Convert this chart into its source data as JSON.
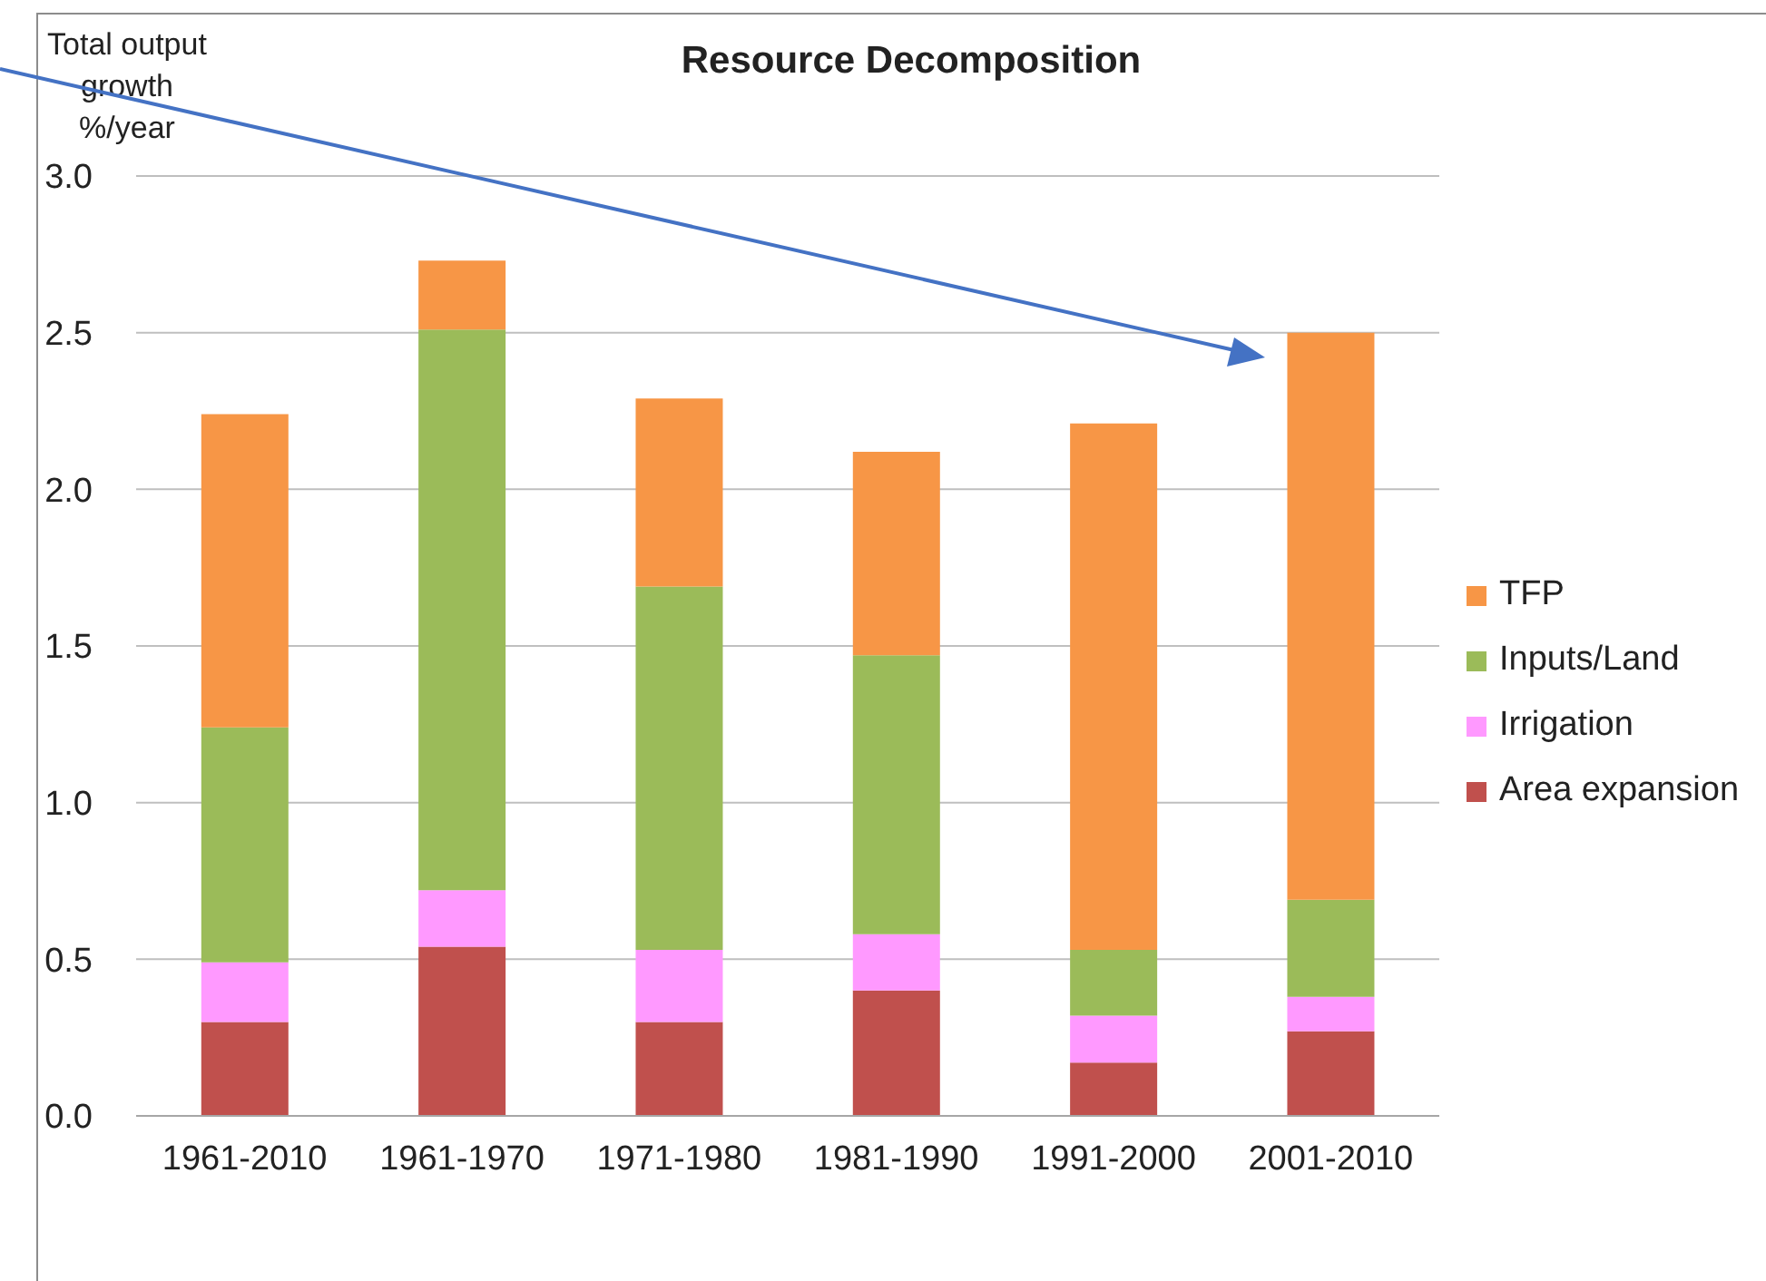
{
  "chart_data": {
    "type": "bar",
    "title": "Resource Decomposition",
    "ylabel": "Total output growth %/year",
    "categories": [
      "1961-2010",
      "1961-1970",
      "1971-1980",
      "1981-1990",
      "1991-2000",
      "2001-2010"
    ],
    "series": [
      {
        "name": "Area expansion",
        "color": "#c0504d",
        "values": [
          0.3,
          0.54,
          0.3,
          0.4,
          0.17,
          0.27
        ]
      },
      {
        "name": "Irrigation",
        "color": "#ff99ff",
        "values": [
          0.19,
          0.18,
          0.23,
          0.18,
          0.15,
          0.11
        ]
      },
      {
        "name": "Inputs/Land",
        "color": "#9bbb59",
        "values": [
          0.75,
          1.79,
          1.16,
          0.89,
          0.21,
          0.31
        ]
      },
      {
        "name": "TFP",
        "color": "#f79646",
        "values": [
          1.0,
          0.22,
          0.6,
          0.65,
          1.68,
          1.81
        ]
      }
    ],
    "stacked": true,
    "ylim": [
      0,
      3
    ],
    "yticks": [
      {
        "value": 0,
        "label": "0.0"
      },
      {
        "value": 0.5,
        "label": "0.5"
      },
      {
        "value": 1,
        "label": "1.0"
      },
      {
        "value": 1.5,
        "label": "1.5"
      },
      {
        "value": 2,
        "label": "2.0"
      },
      {
        "value": 2.5,
        "label": "2.5"
      },
      {
        "value": 3,
        "label": "3.0"
      }
    ],
    "grid": "y",
    "legend": "right"
  }
}
